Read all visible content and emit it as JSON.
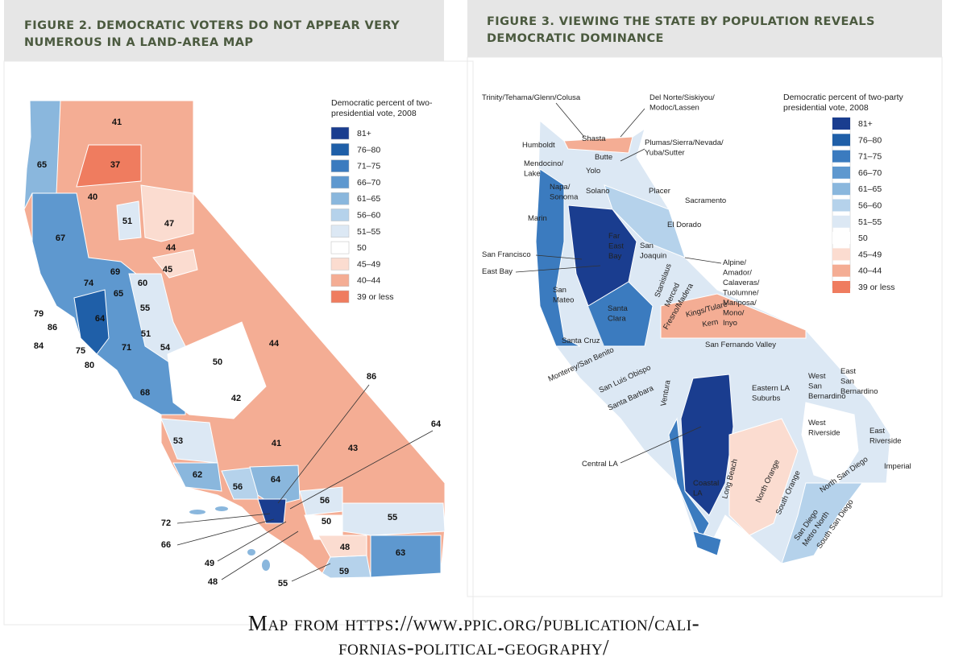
{
  "figure2": {
    "title": [
      "FIGURE 2. DEMOCRATIC VOTERS DO NOT APPEAR VERY",
      "NUMEROUS IN A LAND-AREA MAP"
    ],
    "legend_title": [
      "Democratic percent of two-",
      "presidential vote, 2008"
    ],
    "legend": [
      {
        "label": "81+",
        "color": "#1a3d8f"
      },
      {
        "label": "76–80",
        "color": "#1f5fa8"
      },
      {
        "label": "71–75",
        "color": "#3b7bbf"
      },
      {
        "label": "66–70",
        "color": "#5e98cf"
      },
      {
        "label": "61–65",
        "color": "#8ab7dd"
      },
      {
        "label": "56–60",
        "color": "#b5d2eb"
      },
      {
        "label": "51–55",
        "color": "#dce8f4"
      },
      {
        "label": "50",
        "color": "#ffffff"
      },
      {
        "label": "45–49",
        "color": "#fbdcd0"
      },
      {
        "label": "40–44",
        "color": "#f4ad94"
      },
      {
        "label": "39 or less",
        "color": "#ef7c5f"
      }
    ],
    "labels": [
      41,
      65,
      37,
      40,
      51,
      47,
      44,
      67,
      45,
      69,
      60,
      74,
      65,
      79,
      55,
      86,
      64,
      51,
      84,
      75,
      71,
      54,
      80,
      50,
      44,
      68,
      42,
      86,
      53,
      41,
      43,
      64,
      62,
      56,
      64,
      56,
      72,
      50,
      55,
      66,
      48,
      49,
      63,
      48,
      59,
      55
    ]
  },
  "figure3": {
    "title": [
      "FIGURE 3. VIEWING THE STATE BY POPULATION REVEALS",
      "DEMOCRATIC DOMINANCE"
    ],
    "legend_title": [
      "Democratic percent of two-party",
      "presidential vote, 2008"
    ],
    "legend": [
      {
        "label": "81+",
        "color": "#1a3d8f"
      },
      {
        "label": "76–80",
        "color": "#1f5fa8"
      },
      {
        "label": "71–75",
        "color": "#3b7bbf"
      },
      {
        "label": "66–70",
        "color": "#5e98cf"
      },
      {
        "label": "61–65",
        "color": "#8ab7dd"
      },
      {
        "label": "56–60",
        "color": "#b5d2eb"
      },
      {
        "label": "51–55",
        "color": "#dce8f4"
      },
      {
        "label": "50",
        "color": "#ffffff"
      },
      {
        "label": "45–49",
        "color": "#fbdcd0"
      },
      {
        "label": "40–44",
        "color": "#f4ad94"
      },
      {
        "label": "39 or less",
        "color": "#ef7c5f"
      }
    ],
    "regions": [
      [
        "Trinity/Tehama/Glenn/Colusa"
      ],
      [
        "Del Norte/Siskiyou/",
        "Modoc/Lassen"
      ],
      [
        "Humboldt"
      ],
      [
        "Shasta"
      ],
      [
        "Butte"
      ],
      [
        "Plumas/Sierra/Nevada/",
        "Yuba/Sutter"
      ],
      [
        "Mendocino/",
        "Lake"
      ],
      [
        "Yolo"
      ],
      [
        "Napa/",
        "Sonoma"
      ],
      [
        "Solano"
      ],
      [
        "Placer"
      ],
      [
        "Sacramento"
      ],
      [
        "El Dorado"
      ],
      [
        "Marin"
      ],
      [
        "Far",
        "East",
        "Bay"
      ],
      [
        "San",
        "Joaquin"
      ],
      [
        "San Francisco"
      ],
      [
        "East Bay"
      ],
      [
        "Alpine/",
        "Amador/",
        "Calaveras/",
        "Tuolumne/",
        "Mariposa/",
        "Mono/",
        "Inyo"
      ],
      [
        "San",
        "Mateo"
      ],
      [
        "Stanislaus"
      ],
      [
        "Merced"
      ],
      [
        "Fresno/Madera"
      ],
      [
        "Kings/Tulare"
      ],
      [
        "Kern"
      ],
      [
        "Santa",
        "Clara"
      ],
      [
        "Santa Cruz"
      ],
      [
        "San Fernando Valley"
      ],
      [
        "Monterey/San Benito"
      ],
      [
        "San Luis Obispo"
      ],
      [
        "Santa Barbara"
      ],
      [
        "Ventura"
      ],
      [
        "Eastern LA",
        "Suburbs"
      ],
      [
        "West",
        "San",
        "Bernardino"
      ],
      [
        "East",
        "San",
        "Bernardino"
      ],
      [
        "West",
        "Riverside"
      ],
      [
        "East",
        "Riverside"
      ],
      [
        "Central LA"
      ],
      [
        "Imperial"
      ],
      [
        "Coastal",
        "LA"
      ],
      [
        "Long Beach"
      ],
      [
        "North Orange"
      ],
      [
        "South Orange"
      ],
      [
        "North San Diego"
      ],
      [
        "San Diego",
        "Metro North"
      ],
      [
        "South San Diego"
      ]
    ]
  },
  "caption": [
    "Map from https://www.ppic.org/publication/cali-",
    "fornias-political-geography/"
  ]
}
